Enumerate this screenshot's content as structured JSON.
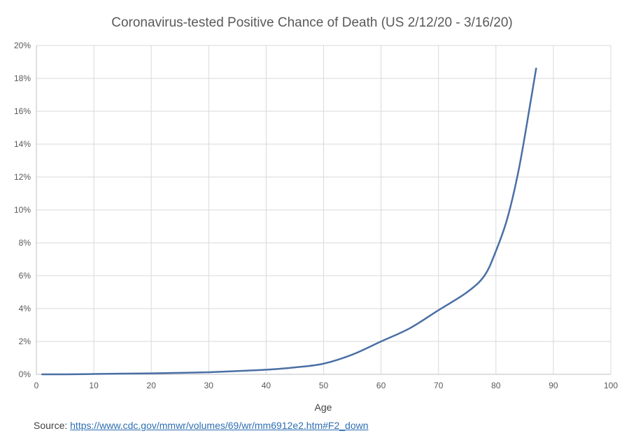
{
  "chart_data": {
    "type": "line",
    "title": "Coronavirus-tested Positive Chance of Death (US 2/12/20 - 3/16/20)",
    "xlabel": "Age",
    "ylabel": "",
    "xlim": [
      0,
      100
    ],
    "ylim": [
      0,
      20
    ],
    "x_ticks": [
      0,
      10,
      20,
      30,
      40,
      50,
      60,
      70,
      80,
      90,
      100
    ],
    "x_tick_labels": [
      "0",
      "10",
      "20",
      "30",
      "40",
      "50",
      "60",
      "70",
      "80",
      "90",
      "100"
    ],
    "y_ticks": [
      0,
      2,
      4,
      6,
      8,
      10,
      12,
      14,
      16,
      18,
      20
    ],
    "y_tick_labels": [
      "0%",
      "2%",
      "4%",
      "6%",
      "8%",
      "10%",
      "12%",
      "14%",
      "16%",
      "18%",
      "20%"
    ],
    "grid": true,
    "legend": "none",
    "series_color": "#4a6fa5",
    "series": [
      {
        "x": [
          1,
          5,
          10,
          15,
          20,
          25,
          30,
          35,
          40,
          45,
          50,
          55,
          60,
          65,
          70,
          75,
          78,
          80,
          82,
          84,
          86,
          87
        ],
        "values": [
          0.0,
          0.0,
          0.02,
          0.04,
          0.06,
          0.09,
          0.13,
          0.2,
          0.28,
          0.42,
          0.65,
          1.2,
          2.0,
          2.8,
          3.9,
          5.0,
          6.0,
          7.5,
          9.5,
          12.5,
          16.5,
          18.6
        ]
      }
    ]
  },
  "source": {
    "label": "Source:",
    "url": "https://www.cdc.gov/mmwr/volumes/69/wr/mm6912e2.htm#F2_down"
  }
}
